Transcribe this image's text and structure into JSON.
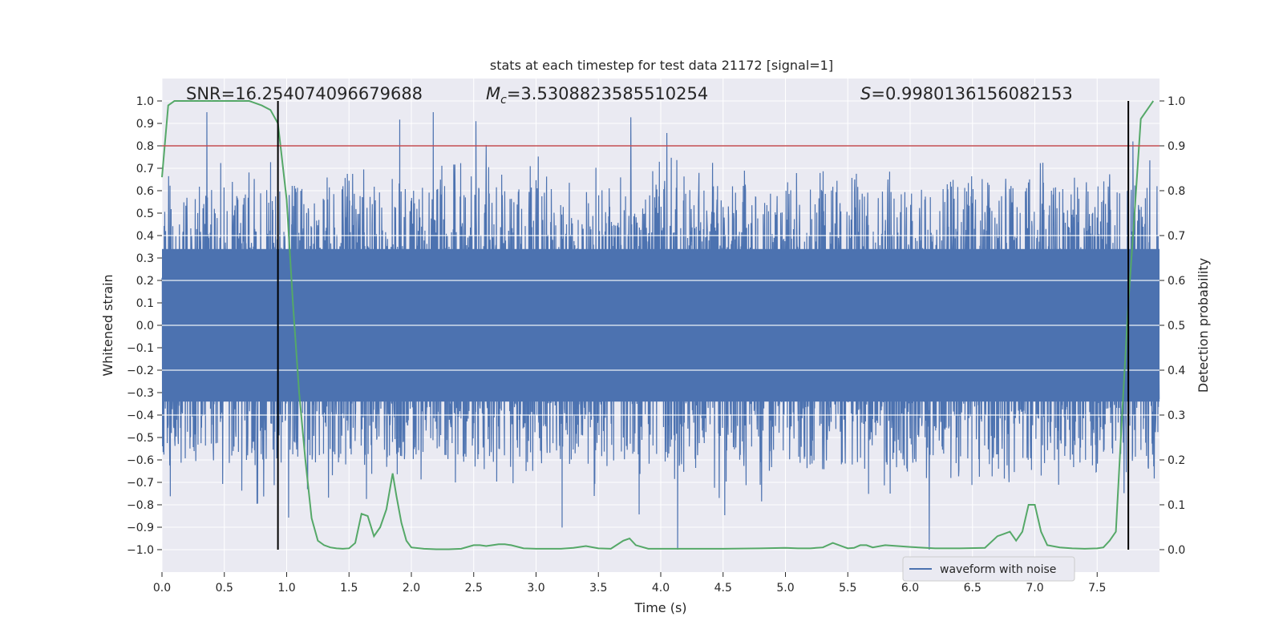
{
  "chart_data": {
    "type": "line",
    "title": "stats at each timestep for test data 21172 [signal=1]",
    "xlabel": "Time (s)",
    "ylabel": "Whitened strain",
    "y2label": "Detection probability",
    "xlim": [
      0.0,
      8.0
    ],
    "ylim": [
      -1.1,
      1.1
    ],
    "y2lim": [
      -0.05,
      1.05
    ],
    "xticks": [
      "0.0",
      "0.5",
      "1.0",
      "1.5",
      "2.0",
      "2.5",
      "3.0",
      "3.5",
      "4.0",
      "4.5",
      "5.0",
      "5.5",
      "6.0",
      "6.5",
      "7.0",
      "7.5"
    ],
    "yticks": [
      "1.0",
      "0.9",
      "0.8",
      "0.7",
      "0.6",
      "0.5",
      "0.4",
      "0.3",
      "0.2",
      "0.1",
      "0.0",
      "−0.1",
      "−0.2",
      "−0.3",
      "−0.4",
      "−0.5",
      "−0.6",
      "−0.7",
      "−0.8",
      "−0.9",
      "−1.0"
    ],
    "y2ticks": [
      "1.0",
      "0.9",
      "0.8",
      "0.7",
      "0.6",
      "0.5",
      "0.4",
      "0.3",
      "0.2",
      "0.1",
      "0.0"
    ],
    "grid": true,
    "legend_position": "lower-right",
    "annotations": {
      "snr": "SNR=16.254074096679688",
      "mc_symbol": "M",
      "mc_sub": "c",
      "mc_value": "=3.5308823585510254",
      "s_symbol": "S",
      "s_value": "=0.9980136156082153"
    },
    "threshold": {
      "value": 0.9,
      "axis": "right",
      "color": "#c44e52"
    },
    "vlines": [
      0.93,
      7.75
    ],
    "series": [
      {
        "name": "waveform with noise",
        "axis": "left",
        "color": "#4c72b0",
        "description_envelope": "dense white-noise strain, typical |strain| about 0.4 with peaks near 0.95 and troughs near -1.0",
        "sample_count": 3600,
        "range": [
          -1.0,
          0.95
        ]
      },
      {
        "axis": "right",
        "color": "#55a868",
        "x": [
          0.0,
          0.05,
          0.1,
          0.2,
          0.3,
          0.4,
          0.5,
          0.6,
          0.7,
          0.8,
          0.87,
          0.93,
          1.0,
          1.05,
          1.1,
          1.15,
          1.2,
          1.25,
          1.3,
          1.35,
          1.4,
          1.45,
          1.5,
          1.55,
          1.6,
          1.65,
          1.7,
          1.75,
          1.8,
          1.85,
          1.88,
          1.92,
          1.96,
          2.0,
          2.1,
          2.2,
          2.3,
          2.4,
          2.5,
          2.55,
          2.6,
          2.65,
          2.7,
          2.75,
          2.8,
          2.9,
          3.0,
          3.1,
          3.2,
          3.3,
          3.4,
          3.5,
          3.6,
          3.7,
          3.75,
          3.8,
          3.9,
          4.0,
          4.2,
          4.5,
          4.8,
          5.0,
          5.1,
          5.2,
          5.3,
          5.38,
          5.45,
          5.5,
          5.55,
          5.6,
          5.65,
          5.7,
          5.8,
          5.9,
          6.0,
          6.2,
          6.4,
          6.6,
          6.7,
          6.75,
          6.8,
          6.85,
          6.9,
          6.95,
          7.0,
          7.05,
          7.1,
          7.2,
          7.3,
          7.4,
          7.5,
          7.55,
          7.6,
          7.65,
          7.7,
          7.75,
          7.8,
          7.85,
          7.9,
          7.95
        ],
        "y": [
          0.83,
          0.99,
          1.0,
          1.0,
          1.0,
          1.0,
          1.0,
          1.0,
          1.0,
          0.99,
          0.98,
          0.95,
          0.78,
          0.55,
          0.35,
          0.2,
          0.07,
          0.02,
          0.01,
          0.005,
          0.003,
          0.002,
          0.003,
          0.015,
          0.08,
          0.075,
          0.03,
          0.05,
          0.09,
          0.17,
          0.12,
          0.06,
          0.02,
          0.005,
          0.002,
          0.001,
          0.001,
          0.002,
          0.01,
          0.01,
          0.008,
          0.01,
          0.012,
          0.012,
          0.01,
          0.003,
          0.002,
          0.002,
          0.002,
          0.004,
          0.008,
          0.003,
          0.002,
          0.02,
          0.025,
          0.01,
          0.002,
          0.002,
          0.002,
          0.002,
          0.003,
          0.004,
          0.003,
          0.003,
          0.005,
          0.015,
          0.008,
          0.003,
          0.004,
          0.01,
          0.01,
          0.005,
          0.01,
          0.008,
          0.006,
          0.003,
          0.003,
          0.004,
          0.03,
          0.035,
          0.04,
          0.02,
          0.04,
          0.1,
          0.1,
          0.04,
          0.01,
          0.005,
          0.003,
          0.002,
          0.003,
          0.005,
          0.02,
          0.04,
          0.3,
          0.55,
          0.75,
          0.96,
          0.98,
          1.0
        ]
      }
    ]
  }
}
